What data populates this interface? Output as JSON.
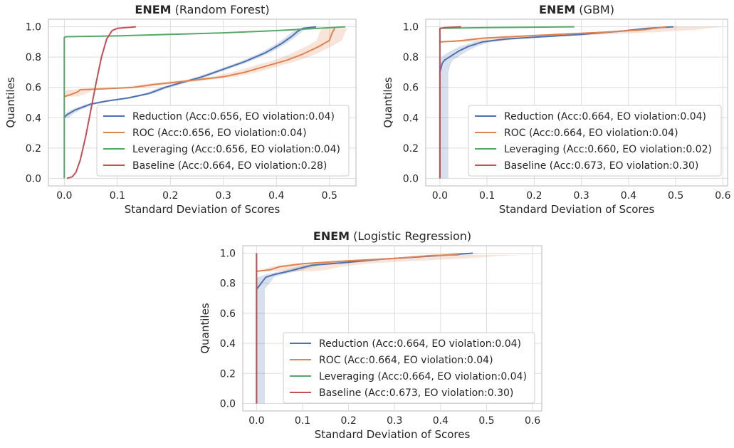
{
  "chart_data": [
    {
      "type": "line",
      "title_bold": "ENEM",
      "title_rest": " (Random Forest)",
      "xlabel": "Standard Deviation of Scores",
      "ylabel": "Quantiles",
      "xlim": [
        -0.03,
        0.55
      ],
      "ylim": [
        -0.05,
        1.05
      ],
      "xticks": [
        "0.0",
        "0.1",
        "0.2",
        "0.3",
        "0.4",
        "0.5"
      ],
      "xtick_values": [
        0,
        0.1,
        0.2,
        0.3,
        0.4,
        0.5
      ],
      "yticks": [
        "0.0",
        "0.2",
        "0.4",
        "0.6",
        "0.8",
        "1.0"
      ],
      "ytick_values": [
        0,
        0.2,
        0.4,
        0.6,
        0.8,
        1.0
      ],
      "grid": true,
      "legend_position": "lower-right",
      "series": [
        {
          "name": "Reduction (Acc:0.656, EO violation:0.04)",
          "color": "#4c72b0",
          "points": [
            [
              0,
              0.4
            ],
            [
              0.005,
              0.42
            ],
            [
              0.02,
              0.45
            ],
            [
              0.05,
              0.49
            ],
            [
              0.08,
              0.51
            ],
            [
              0.12,
              0.53
            ],
            [
              0.16,
              0.56
            ],
            [
              0.19,
              0.6
            ],
            [
              0.22,
              0.63
            ],
            [
              0.26,
              0.67
            ],
            [
              0.3,
              0.72
            ],
            [
              0.34,
              0.77
            ],
            [
              0.38,
              0.83
            ],
            [
              0.41,
              0.89
            ],
            [
              0.43,
              0.94
            ],
            [
              0.44,
              0.97
            ],
            [
              0.45,
              0.99
            ],
            [
              0.475,
              1.0
            ]
          ],
          "band": 0.015
        },
        {
          "name": "ROC (Acc:0.656, EO violation:0.04)",
          "color": "#dd8452",
          "points": [
            [
              0,
              0.54
            ],
            [
              0.01,
              0.55
            ],
            [
              0.025,
              0.57
            ],
            [
              0.03,
              0.585
            ],
            [
              0.07,
              0.59
            ],
            [
              0.13,
              0.6
            ],
            [
              0.17,
              0.62
            ],
            [
              0.2,
              0.63
            ],
            [
              0.25,
              0.65
            ],
            [
              0.3,
              0.67
            ],
            [
              0.34,
              0.7
            ],
            [
              0.38,
              0.74
            ],
            [
              0.42,
              0.78
            ],
            [
              0.45,
              0.82
            ],
            [
              0.48,
              0.87
            ],
            [
              0.5,
              0.91
            ],
            [
              0.505,
              0.96
            ],
            [
              0.51,
              0.99
            ]
          ],
          "band": 0.04
        },
        {
          "name": "Leveraging (Acc:0.656, EO violation:0.04)",
          "color": "#55a868",
          "points": [
            [
              0,
              0.0
            ],
            [
              0,
              0.93
            ],
            [
              0.003,
              0.935
            ],
            [
              0.1,
              0.94
            ],
            [
              0.2,
              0.95
            ],
            [
              0.3,
              0.96
            ],
            [
              0.4,
              0.975
            ],
            [
              0.48,
              0.99
            ],
            [
              0.53,
              1.0
            ]
          ],
          "band": 0
        },
        {
          "name": "Baseline (Acc:0.664, EO violation:0.28)",
          "color": "#c44e52",
          "points": [
            [
              0.005,
              0.0
            ],
            [
              0.015,
              0.01
            ],
            [
              0.022,
              0.04
            ],
            [
              0.03,
              0.12
            ],
            [
              0.04,
              0.27
            ],
            [
              0.05,
              0.45
            ],
            [
              0.06,
              0.63
            ],
            [
              0.07,
              0.8
            ],
            [
              0.08,
              0.92
            ],
            [
              0.09,
              0.975
            ],
            [
              0.1,
              0.99
            ],
            [
              0.135,
              1.0
            ]
          ],
          "band": 0
        }
      ]
    },
    {
      "type": "line",
      "title_bold": "ENEM",
      "title_rest": " (GBM)",
      "xlabel": "Standard Deviation of Scores",
      "ylabel": "Quantiles",
      "xlim": [
        -0.03,
        0.61
      ],
      "ylim": [
        -0.05,
        1.05
      ],
      "xticks": [
        "0.0",
        "0.1",
        "0.2",
        "0.3",
        "0.4",
        "0.5",
        "0.6"
      ],
      "xtick_values": [
        0,
        0.1,
        0.2,
        0.3,
        0.4,
        0.5,
        0.6
      ],
      "yticks": [
        "0.0",
        "0.2",
        "0.4",
        "0.6",
        "0.8",
        "1.0"
      ],
      "ytick_values": [
        0,
        0.2,
        0.4,
        0.6,
        0.8,
        1.0
      ],
      "grid": true,
      "legend_position": "lower-right",
      "series": [
        {
          "name": "Reduction (Acc:0.664, EO violation:0.04)",
          "color": "#4c72b0",
          "points": [
            [
              0,
              0.0
            ],
            [
              0,
              0.7
            ],
            [
              0.005,
              0.76
            ],
            [
              0.01,
              0.78
            ],
            [
              0.02,
              0.8
            ],
            [
              0.04,
              0.84
            ],
            [
              0.06,
              0.87
            ],
            [
              0.09,
              0.9
            ],
            [
              0.14,
              0.92
            ],
            [
              0.22,
              0.935
            ],
            [
              0.3,
              0.95
            ],
            [
              0.38,
              0.97
            ],
            [
              0.44,
              0.99
            ],
            [
              0.495,
              1.0
            ]
          ],
          "band": 0.03
        },
        {
          "name": "ROC (Acc:0.664, EO violation:0.04)",
          "color": "#dd8452",
          "points": [
            [
              0,
              0.9
            ],
            [
              0.03,
              0.905
            ],
            [
              0.05,
              0.91
            ],
            [
              0.09,
              0.925
            ],
            [
              0.15,
              0.935
            ],
            [
              0.25,
              0.95
            ],
            [
              0.35,
              0.965
            ],
            [
              0.43,
              0.98
            ],
            [
              0.48,
              1.0
            ]
          ],
          "band": 0.03,
          "band_x_extend": 0.1
        },
        {
          "name": "Leveraging (Acc:0.660, EO violation:0.02)",
          "color": "#55a868",
          "points": [
            [
              0,
              0.99
            ],
            [
              0.1,
              0.995
            ],
            [
              0.2,
              0.998
            ],
            [
              0.285,
              1.0
            ]
          ],
          "band": 0
        },
        {
          "name": "Baseline (Acc:0.673, EO violation:0.30)",
          "color": "#c44e52",
          "points": [
            [
              0,
              0.0
            ],
            [
              0,
              0.99
            ],
            [
              0.01,
              0.995
            ],
            [
              0.045,
              1.0
            ]
          ],
          "band": 0
        }
      ]
    },
    {
      "type": "line",
      "title_bold": "ENEM",
      "title_rest": " (Logistic Regression)",
      "xlabel": "Standard Deviation of Scores",
      "ylabel": "Quantiles",
      "xlim": [
        -0.03,
        0.62
      ],
      "ylim": [
        -0.05,
        1.05
      ],
      "xticks": [
        "0.0",
        "0.1",
        "0.2",
        "0.3",
        "0.4",
        "0.5",
        "0.6"
      ],
      "xtick_values": [
        0,
        0.1,
        0.2,
        0.3,
        0.4,
        0.5,
        0.6
      ],
      "yticks": [
        "0.0",
        "0.2",
        "0.4",
        "0.6",
        "0.8",
        "1.0"
      ],
      "ytick_values": [
        0,
        0.2,
        0.4,
        0.6,
        0.8,
        1.0
      ],
      "grid": true,
      "legend_position": "lower-right",
      "series": [
        {
          "name": "Reduction (Acc:0.664, EO violation:0.04)",
          "color": "#4c72b0",
          "points": [
            [
              0,
              0.0
            ],
            [
              0,
              0.76
            ],
            [
              0.005,
              0.78
            ],
            [
              0.01,
              0.8
            ],
            [
              0.02,
              0.84
            ],
            [
              0.04,
              0.86
            ],
            [
              0.07,
              0.88
            ],
            [
              0.12,
              0.92
            ],
            [
              0.2,
              0.94
            ],
            [
              0.27,
              0.96
            ],
            [
              0.35,
              0.975
            ],
            [
              0.42,
              0.99
            ],
            [
              0.47,
              1.0
            ]
          ],
          "band": 0.03
        },
        {
          "name": "ROC (Acc:0.664, EO violation:0.04)",
          "color": "#dd8452",
          "points": [
            [
              0,
              0.88
            ],
            [
              0.03,
              0.89
            ],
            [
              0.05,
              0.91
            ],
            [
              0.1,
              0.93
            ],
            [
              0.2,
              0.95
            ],
            [
              0.3,
              0.965
            ],
            [
              0.38,
              0.985
            ],
            [
              0.44,
              0.99
            ]
          ],
          "band": 0.03,
          "band_x_extend": 0.15
        },
        {
          "name": "Leveraging (Acc:0.664, EO violation:0.04)",
          "color": "#55a868",
          "points": [
            [
              0,
              0.0
            ],
            [
              0,
              1.0
            ]
          ],
          "band": 0
        },
        {
          "name": "Baseline (Acc:0.673, EO violation:0.30)",
          "color": "#c44e52",
          "points": [
            [
              0,
              0.0
            ],
            [
              0,
              1.0
            ]
          ],
          "band": 0
        }
      ]
    }
  ]
}
